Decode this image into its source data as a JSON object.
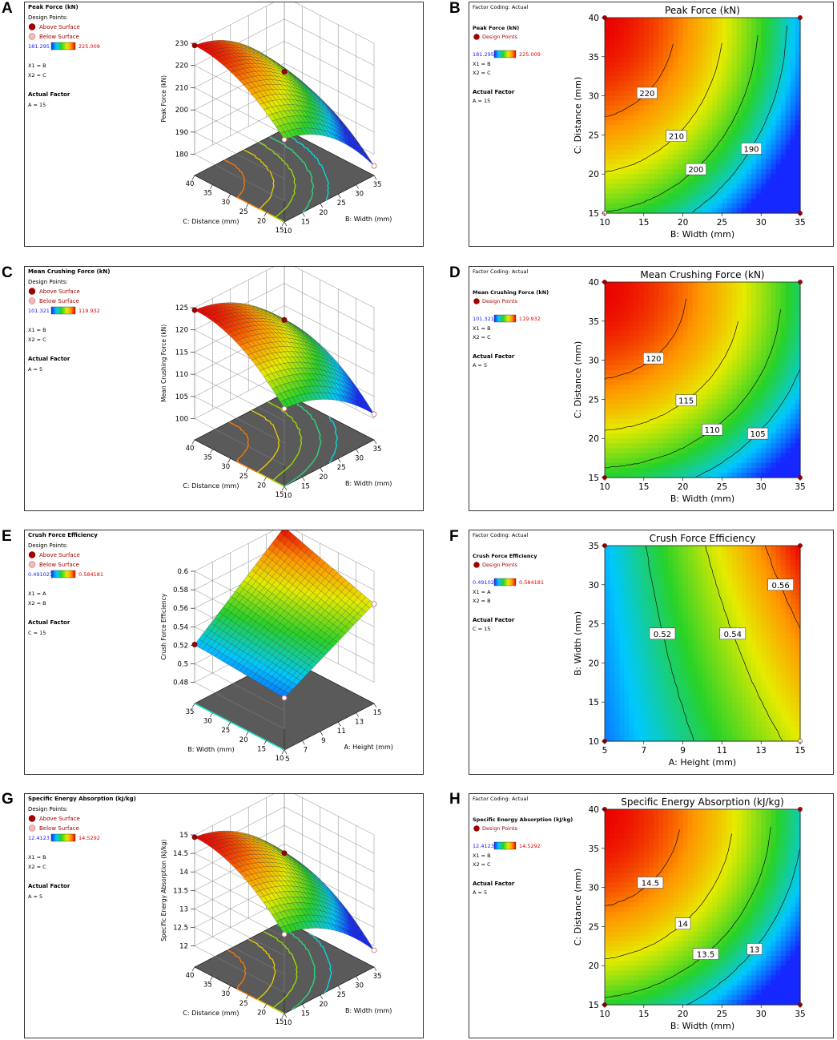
{
  "panel_letters": [
    "A",
    "B",
    "C",
    "D",
    "E",
    "F",
    "G",
    "H"
  ],
  "common": {
    "design_points_label": "Design Points:",
    "above_surface": "Above Surface",
    "below_surface": "Below Surface",
    "design_points": "Design Points",
    "factor_coding": "Factor Coding: Actual",
    "actual_factor": "Actual Factor",
    "colors": {
      "above": "#a80000",
      "below": "#f3b8b8",
      "axis_text": "#000000",
      "cbar_low": "#1a1aff",
      "cbar_high": "#e00000"
    }
  },
  "chart_data": [
    {
      "panel": "A",
      "type": "surface3d",
      "title": "Peak Force (kN)",
      "cbar_min": "181.295",
      "cbar_max": "225.009",
      "x1": "X1 = B",
      "x2": "X2 = C",
      "actual_factor_value": "A = 15",
      "zlabel": "Peak Force (kN)",
      "zticks": [
        "180",
        "190",
        "200",
        "210",
        "220",
        "230"
      ],
      "zlim": [
        180,
        230
      ],
      "left_axis_label": "C: Distance (mm)",
      "left_ticks": [
        "40",
        "35",
        "30",
        "25",
        "20",
        "15"
      ],
      "right_axis_label": "B: Width (mm)",
      "right_ticks": [
        "10",
        "15",
        "20",
        "25",
        "30",
        "35"
      ]
    },
    {
      "panel": "B",
      "type": "contour",
      "title": "Peak Force (kN)",
      "cbar_min": "181.295",
      "cbar_max": "225.009",
      "x1": "X1 = B",
      "x2": "X2 = C",
      "actual_factor_value": "A = 15",
      "xlabel": "B: Width (mm)",
      "ylabel": "C: Distance (mm)",
      "xticks": [
        "10",
        "15",
        "20",
        "25",
        "30",
        "35"
      ],
      "yticks": [
        "15",
        "20",
        "25",
        "30",
        "35",
        "40"
      ],
      "xlim": [
        10,
        35
      ],
      "ylim": [
        15,
        40
      ],
      "contour_labels": [
        "220",
        "210",
        "200",
        "190"
      ]
    },
    {
      "panel": "C",
      "type": "surface3d",
      "title": "Mean Crushing Force (kN)",
      "cbar_min": "101.321",
      "cbar_max": "119.932",
      "x1": "X1 = B",
      "x2": "X2 = C",
      "actual_factor_value": "A = 5",
      "zlabel": "Mean Crushing Force (kN)",
      "zticks": [
        "100",
        "105",
        "110",
        "115",
        "120",
        "125"
      ],
      "zlim": [
        100,
        125
      ],
      "left_axis_label": "C: Distance (mm)",
      "left_ticks": [
        "40",
        "35",
        "30",
        "25",
        "20",
        "15"
      ],
      "right_axis_label": "B: Width (mm)",
      "right_ticks": [
        "10",
        "15",
        "20",
        "25",
        "30",
        "35"
      ]
    },
    {
      "panel": "D",
      "type": "contour",
      "title": "Mean Crushing Force (kN)",
      "cbar_min": "101.321",
      "cbar_max": "119.932",
      "x1": "X1 = B",
      "x2": "X2 = C",
      "actual_factor_value": "A = 5",
      "xlabel": "B: Width (mm)",
      "ylabel": "C: Distance (mm)",
      "xticks": [
        "10",
        "15",
        "20",
        "25",
        "30",
        "35"
      ],
      "yticks": [
        "15",
        "20",
        "25",
        "30",
        "35",
        "40"
      ],
      "xlim": [
        10,
        35
      ],
      "ylim": [
        15,
        40
      ],
      "contour_labels": [
        "120",
        "115",
        "110",
        "105"
      ]
    },
    {
      "panel": "E",
      "type": "surface3d",
      "title": "Crush Force Efficiency",
      "cbar_min": "0.491027",
      "cbar_max": "0.584181",
      "x1": "X1 = A",
      "x2": "X2 = B",
      "actual_factor_value": "C = 15",
      "zlabel": "Crush Force Efficiency",
      "zticks": [
        "0.48",
        "0.5",
        "0.52",
        "0.54",
        "0.56",
        "0.58",
        "0.6"
      ],
      "zlim": [
        0.48,
        0.6
      ],
      "left_axis_label": "B: Width (mm)",
      "left_ticks": [
        "35",
        "30",
        "25",
        "20",
        "15",
        "10"
      ],
      "right_axis_label": "A: Height (mm)",
      "right_ticks": [
        "5",
        "7",
        "9",
        "11",
        "13",
        "15"
      ]
    },
    {
      "panel": "F",
      "type": "contour",
      "title": "Crush Force Efficiency",
      "cbar_min": "0.491027",
      "cbar_max": "0.584181",
      "x1": "X1 = A",
      "x2": "X2 = B",
      "actual_factor_value": "C = 15",
      "xlabel": "A: Height (mm)",
      "ylabel": "B: Width (mm)",
      "xticks": [
        "5",
        "7",
        "9",
        "11",
        "13",
        "15"
      ],
      "yticks": [
        "10",
        "15",
        "20",
        "25",
        "30",
        "35"
      ],
      "xlim": [
        5,
        15
      ],
      "ylim": [
        10,
        35
      ],
      "contour_labels": [
        "0.52",
        "0.54",
        "0.56"
      ]
    },
    {
      "panel": "G",
      "type": "surface3d",
      "title": "Specific Energy Absorption (kJ/kg)",
      "cbar_min": "12.4123",
      "cbar_max": "14.5292",
      "x1": "X1 = B",
      "x2": "X2 = C",
      "actual_factor_value": "A = 5",
      "zlabel": "Specific Energy Absorption (kJ/kg)",
      "zticks": [
        "12",
        "12.5",
        "13",
        "13.5",
        "14",
        "14.5",
        "15"
      ],
      "zlim": [
        12,
        15
      ],
      "left_axis_label": "C: Distance (mm)",
      "left_ticks": [
        "40",
        "35",
        "30",
        "25",
        "20",
        "15"
      ],
      "right_axis_label": "B: Width (mm)",
      "right_ticks": [
        "10",
        "15",
        "20",
        "25",
        "30",
        "35"
      ]
    },
    {
      "panel": "H",
      "type": "contour",
      "title": "Specific Energy Absorption (kJ/kg)",
      "cbar_min": "12.4123",
      "cbar_max": "14.5292",
      "x1": "X1 = B",
      "x2": "X2 = C",
      "actual_factor_value": "A = 5",
      "xlabel": "B: Width (mm)",
      "ylabel": "C: Distance (mm)",
      "xticks": [
        "10",
        "15",
        "20",
        "25",
        "30",
        "35"
      ],
      "yticks": [
        "15",
        "20",
        "25",
        "30",
        "35",
        "40"
      ],
      "xlim": [
        10,
        35
      ],
      "ylim": [
        15,
        40
      ],
      "contour_labels": [
        "14.5",
        "14",
        "13.5",
        "13"
      ]
    }
  ]
}
